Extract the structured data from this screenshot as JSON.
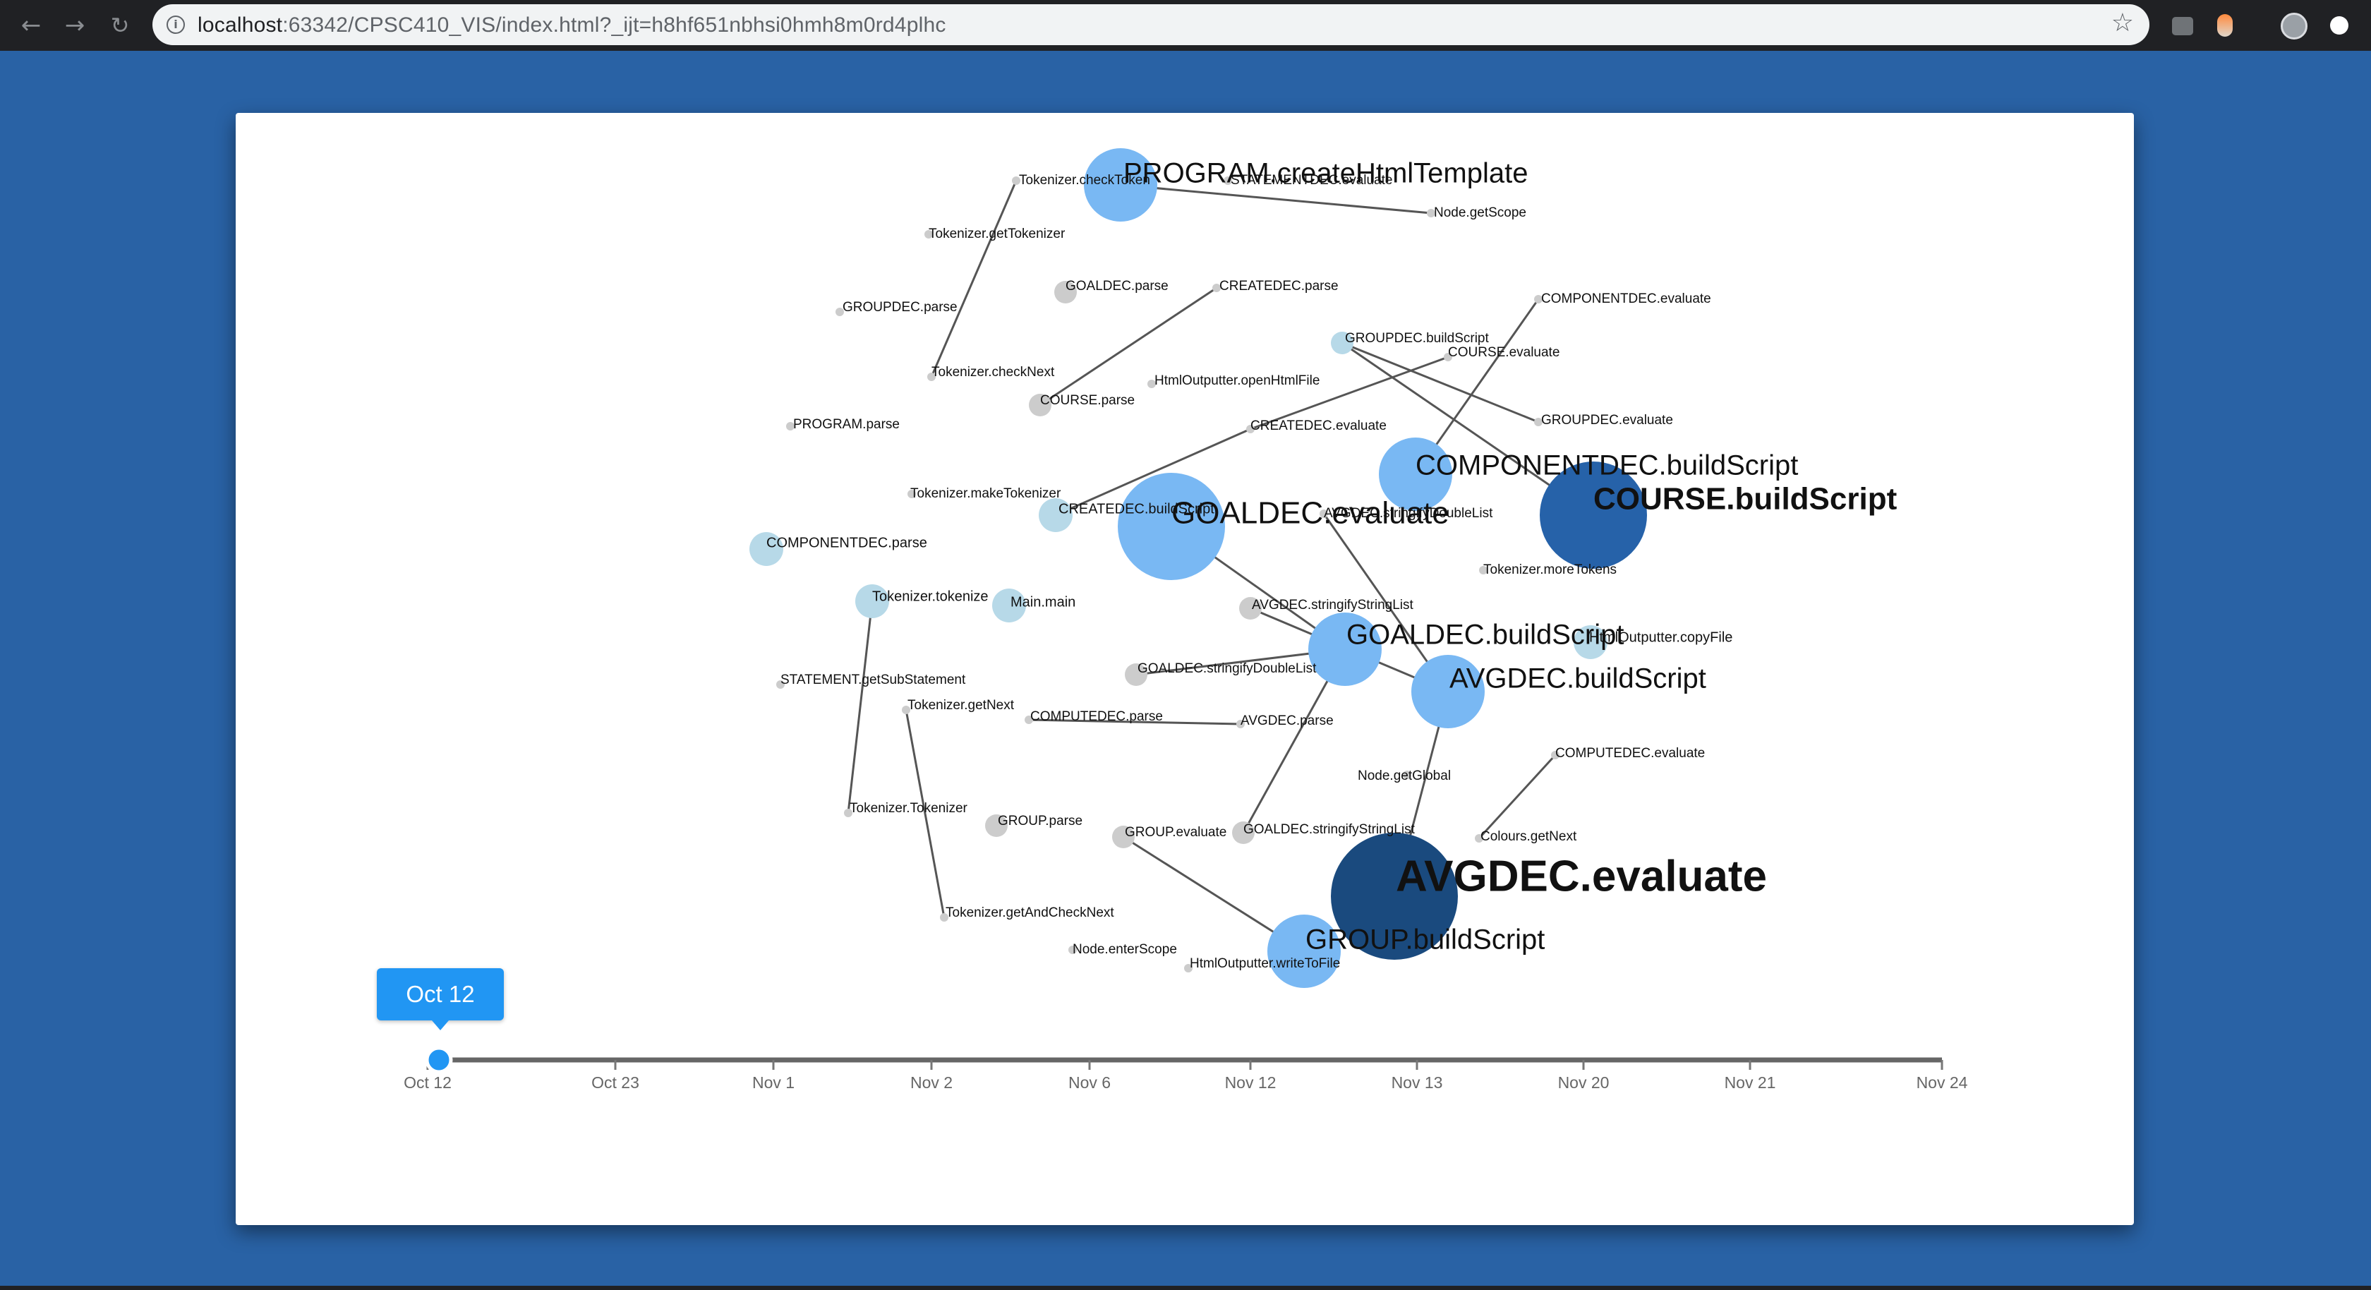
{
  "browser": {
    "url_host": "localhost",
    "url_rest": ":63342/CPSC410_VIS/index.html?_ijt=h8hf651nbhsi0hmh8m0rd4plhc",
    "back_icon": "arrow-left-icon",
    "forward_icon": "arrow-right-icon",
    "reload_icon": "reload-icon",
    "info_icon": "info-icon",
    "star_icon": "star-icon"
  },
  "timeline": {
    "selected": "Oct 12",
    "ticks": [
      "Oct 12",
      "Oct 23",
      "Nov 1",
      "Nov 2",
      "Nov 6",
      "Nov 12",
      "Nov 13",
      "Nov 20",
      "Nov 21",
      "Nov 24"
    ],
    "selected_index": 0
  },
  "colors": {
    "background": "#2962a5",
    "gray": "#cccccc",
    "pale": "#b7d9e8",
    "light": "#79b8f3",
    "dark": "#2662a9",
    "darkest": "#1a4a7e",
    "link": "#555555",
    "slider": "#2196f3"
  },
  "graph": {
    "nodes": [
      {
        "id": "PROGRAM.createHtmlTemplate",
        "level": "light",
        "size": "large"
      },
      {
        "id": "Tokenizer.checkToken",
        "level": "gray",
        "size": "tiny"
      },
      {
        "id": "STATEMENTDEC.evaluate",
        "level": "gray",
        "size": "tiny"
      },
      {
        "id": "Node.getScope",
        "level": "gray",
        "size": "tiny"
      },
      {
        "id": "Tokenizer.getTokenizer",
        "level": "gray",
        "size": "tiny"
      },
      {
        "id": "GOALDEC.parse",
        "level": "gray",
        "size": "small"
      },
      {
        "id": "CREATEDEC.parse",
        "level": "gray",
        "size": "tiny"
      },
      {
        "id": "GROUPDEC.parse",
        "level": "gray",
        "size": "tiny"
      },
      {
        "id": "COMPONENTDEC.evaluate",
        "level": "gray",
        "size": "tiny"
      },
      {
        "id": "GROUPDEC.buildScript",
        "level": "pale",
        "size": "small"
      },
      {
        "id": "COURSE.evaluate",
        "level": "gray",
        "size": "tiny"
      },
      {
        "id": "Tokenizer.checkNext",
        "level": "gray",
        "size": "tiny"
      },
      {
        "id": "HtmlOutputter.openHtmlFile",
        "level": "gray",
        "size": "tiny"
      },
      {
        "id": "COURSE.parse",
        "level": "gray",
        "size": "small"
      },
      {
        "id": "GROUPDEC.evaluate",
        "level": "gray",
        "size": "tiny"
      },
      {
        "id": "PROGRAM.parse",
        "level": "gray",
        "size": "tiny"
      },
      {
        "id": "CREATEDEC.evaluate",
        "level": "gray",
        "size": "tiny"
      },
      {
        "id": "COMPONENTDEC.buildScript",
        "level": "light",
        "size": "large"
      },
      {
        "id": "COURSE.buildScript",
        "level": "dark",
        "size": "xlarge"
      },
      {
        "id": "Tokenizer.makeTokenizer",
        "level": "gray",
        "size": "tiny"
      },
      {
        "id": "CREATEDEC.buildScript",
        "level": "pale",
        "size": "medium"
      },
      {
        "id": "GOALDEC.evaluate",
        "level": "light",
        "size": "xlarge"
      },
      {
        "id": "AVGDEC.stringifyDoubleList",
        "level": "gray",
        "size": "tiny"
      },
      {
        "id": "Tokenizer.moreTokens",
        "level": "gray",
        "size": "tiny"
      },
      {
        "id": "COMPONENTDEC.parse",
        "level": "pale",
        "size": "medium"
      },
      {
        "id": "Tokenizer.tokenize",
        "level": "pale",
        "size": "medium"
      },
      {
        "id": "Main.main",
        "level": "pale",
        "size": "medium"
      },
      {
        "id": "AVGDEC.stringifyStringList",
        "level": "gray",
        "size": "small"
      },
      {
        "id": "GOALDEC.buildScript",
        "level": "light",
        "size": "large"
      },
      {
        "id": "HtmlOutputter.copyFile",
        "level": "pale",
        "size": "medium"
      },
      {
        "id": "GOALDEC.stringifyDoubleList",
        "level": "gray",
        "size": "small"
      },
      {
        "id": "AVGDEC.buildScript",
        "level": "light",
        "size": "large"
      },
      {
        "id": "STATEMENT.getSubStatement",
        "level": "gray",
        "size": "tiny"
      },
      {
        "id": "Tokenizer.getNext",
        "level": "gray",
        "size": "tiny"
      },
      {
        "id": "COMPUTEDEC.parse",
        "level": "gray",
        "size": "tiny"
      },
      {
        "id": "AVGDEC.parse",
        "level": "gray",
        "size": "tiny"
      },
      {
        "id": "COMPUTEDEC.evaluate",
        "level": "gray",
        "size": "tiny"
      },
      {
        "id": "Node.getGlobal",
        "level": "gray",
        "size": "tiny"
      },
      {
        "id": "Tokenizer.Tokenizer",
        "level": "gray",
        "size": "tiny"
      },
      {
        "id": "GROUP.parse",
        "level": "gray",
        "size": "small"
      },
      {
        "id": "GROUP.evaluate",
        "level": "gray",
        "size": "small"
      },
      {
        "id": "GOALDEC.stringifyStringList",
        "level": "gray",
        "size": "small"
      },
      {
        "id": "Colours.getNext",
        "level": "gray",
        "size": "tiny"
      },
      {
        "id": "AVGDEC.evaluate",
        "level": "darkest",
        "size": "xxlarge"
      },
      {
        "id": "Tokenizer.getAndCheckNext",
        "level": "gray",
        "size": "tiny"
      },
      {
        "id": "Node.enterScope",
        "level": "gray",
        "size": "tiny"
      },
      {
        "id": "HtmlOutputter.writeToFile",
        "level": "gray",
        "size": "tiny"
      },
      {
        "id": "GROUP.buildScript",
        "level": "light",
        "size": "large"
      }
    ],
    "links": [
      [
        "Tokenizer.checkToken",
        "Tokenizer.checkNext"
      ],
      [
        "PROGRAM.createHtmlTemplate",
        "Node.getScope"
      ],
      [
        "COURSE.parse",
        "CREATEDEC.parse"
      ],
      [
        "GROUPDEC.buildScript",
        "GROUPDEC.evaluate"
      ],
      [
        "GROUPDEC.buildScript",
        "COURSE.buildScript"
      ],
      [
        "COURSE.evaluate",
        "CREATEDEC.evaluate"
      ],
      [
        "COMPONENTDEC.evaluate",
        "COMPONENTDEC.buildScript"
      ],
      [
        "CREATEDEC.evaluate",
        "CREATEDEC.buildScript"
      ],
      [
        "GOALDEC.evaluate",
        "GOALDEC.buildScript"
      ],
      [
        "AVGDEC.stringifyDoubleList",
        "AVGDEC.buildScript"
      ],
      [
        "AVGDEC.stringifyStringList",
        "AVGDEC.buildScript"
      ],
      [
        "GOALDEC.stringifyDoubleList",
        "GOALDEC.buildScript"
      ],
      [
        "GOALDEC.buildScript",
        "GOALDEC.stringifyStringList"
      ],
      [
        "COMPUTEDEC.parse",
        "AVGDEC.parse"
      ],
      [
        "AVGDEC.buildScript",
        "AVGDEC.evaluate"
      ],
      [
        "Colours.getNext",
        "COMPUTEDEC.evaluate"
      ],
      [
        "Tokenizer.tokenize",
        "Tokenizer.Tokenizer"
      ],
      [
        "Tokenizer.getNext",
        "Tokenizer.getAndCheckNext"
      ],
      [
        "GROUP.evaluate",
        "GROUP.buildScript"
      ]
    ]
  }
}
